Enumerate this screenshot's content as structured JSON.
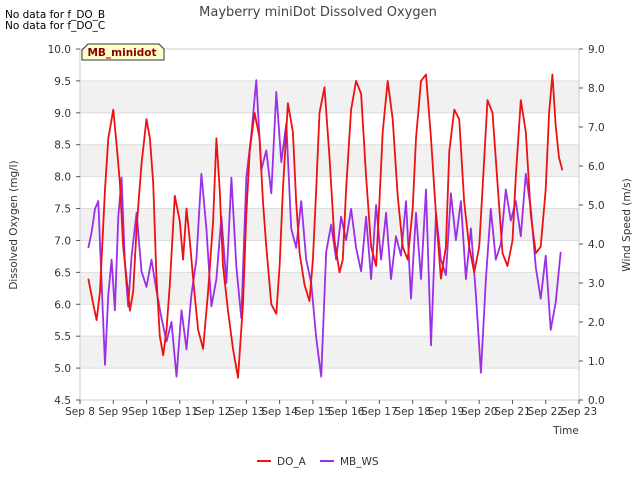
{
  "chart_data": {
    "type": "line",
    "title": "Mayberry miniDot Dissolved Oxygen",
    "notes": [
      "No data for f_DO_B",
      "No data for f_DO_C"
    ],
    "site_badge": "MB_minidot",
    "xlabel": "Time",
    "ylabel_left": "Dissolved Oxygen (mg/l)",
    "ylabel_right": "Wind Speed (m/s)",
    "x_ticks": [
      "Sep 8",
      "Sep 9",
      "Sep 10",
      "Sep 11",
      "Sep 12",
      "Sep 13",
      "Sep 14",
      "Sep 15",
      "Sep 16",
      "Sep 17",
      "Sep 18",
      "Sep 19",
      "Sep 20",
      "Sep 21",
      "Sep 22",
      "Sep 23"
    ],
    "xlim": [
      8,
      23
    ],
    "ylim_left": [
      4.5,
      10.0
    ],
    "ylim_right": [
      0.0,
      9.0
    ],
    "y_ticks_left": [
      "4.5",
      "5.0",
      "5.5",
      "6.0",
      "6.5",
      "7.0",
      "7.5",
      "8.0",
      "8.5",
      "9.0",
      "9.5",
      "10.0"
    ],
    "y_ticks_right": [
      "0.0",
      "1.0",
      "2.0",
      "3.0",
      "4.0",
      "5.0",
      "6.0",
      "7.0",
      "8.0",
      "9.0"
    ],
    "grid_bands": true,
    "legend_position": "bottom-center",
    "series": [
      {
        "name": "DO_A",
        "axis": "left",
        "color": "#ee1111",
        "x": [
          8.25,
          8.4,
          8.5,
          8.6,
          8.75,
          8.85,
          9.0,
          9.1,
          9.2,
          9.3,
          9.4,
          9.5,
          9.6,
          9.7,
          9.85,
          10.0,
          10.1,
          10.2,
          10.3,
          10.4,
          10.5,
          10.6,
          10.7,
          10.85,
          11.0,
          11.1,
          11.2,
          11.3,
          11.4,
          11.55,
          11.7,
          11.85,
          12.0,
          12.1,
          12.2,
          12.3,
          12.45,
          12.6,
          12.75,
          12.9,
          13.0,
          13.1,
          13.25,
          13.4,
          13.5,
          13.6,
          13.75,
          13.9,
          14.0,
          14.1,
          14.25,
          14.4,
          14.5,
          14.6,
          14.75,
          14.9,
          15.0,
          15.1,
          15.2,
          15.35,
          15.5,
          15.65,
          15.8,
          15.9,
          16.0,
          16.15,
          16.3,
          16.45,
          16.6,
          16.75,
          16.9,
          17.0,
          17.1,
          17.25,
          17.4,
          17.55,
          17.7,
          17.85,
          18.0,
          18.1,
          18.25,
          18.4,
          18.55,
          18.7,
          18.85,
          19.0,
          19.1,
          19.25,
          19.4,
          19.55,
          19.7,
          19.85,
          20.0,
          20.1,
          20.25,
          20.4,
          20.55,
          20.7,
          20.85,
          21.0,
          21.1,
          21.25,
          21.4,
          21.55,
          21.7,
          21.85,
          22.0,
          22.1,
          22.2,
          22.3,
          22.4,
          22.5
        ],
        "y": [
          6.4,
          6.0,
          5.75,
          6.2,
          7.8,
          8.6,
          9.05,
          8.5,
          7.9,
          6.9,
          6.4,
          5.9,
          6.2,
          7.2,
          8.2,
          8.9,
          8.6,
          7.9,
          6.4,
          5.5,
          5.2,
          5.6,
          6.3,
          7.7,
          7.3,
          6.7,
          7.5,
          7.0,
          6.4,
          5.6,
          5.3,
          6.2,
          7.3,
          8.6,
          7.8,
          6.6,
          5.9,
          5.3,
          4.85,
          6.0,
          7.4,
          8.4,
          9.0,
          8.6,
          7.6,
          6.9,
          6.0,
          5.85,
          6.6,
          7.8,
          9.15,
          8.7,
          7.6,
          6.8,
          6.3,
          6.05,
          6.7,
          7.8,
          9.0,
          9.4,
          8.3,
          7.0,
          6.5,
          6.7,
          7.8,
          9.05,
          9.5,
          9.3,
          8.0,
          6.9,
          6.6,
          7.6,
          8.7,
          9.5,
          8.9,
          7.7,
          6.9,
          6.7,
          7.5,
          8.6,
          9.5,
          9.6,
          8.6,
          7.4,
          6.4,
          6.9,
          8.4,
          9.05,
          8.9,
          7.6,
          6.9,
          6.5,
          6.9,
          7.8,
          9.2,
          9.0,
          7.9,
          6.8,
          6.6,
          7.0,
          8.0,
          9.2,
          8.7,
          7.4,
          6.8,
          6.9,
          7.8,
          9.0,
          9.6,
          8.8,
          8.3,
          8.1
        ]
      },
      {
        "name": "MB_WS",
        "axis": "right",
        "color": "#9b2fe8",
        "x": [
          8.25,
          8.35,
          8.45,
          8.55,
          8.65,
          8.75,
          8.85,
          8.95,
          9.05,
          9.15,
          9.25,
          9.35,
          9.45,
          9.55,
          9.7,
          9.85,
          10.0,
          10.15,
          10.3,
          10.45,
          10.6,
          10.75,
          10.9,
          11.05,
          11.2,
          11.35,
          11.5,
          11.65,
          11.8,
          11.95,
          12.1,
          12.25,
          12.4,
          12.55,
          12.7,
          12.85,
          13.0,
          13.15,
          13.3,
          13.45,
          13.6,
          13.75,
          13.9,
          14.05,
          14.2,
          14.35,
          14.5,
          14.65,
          14.8,
          14.95,
          15.1,
          15.25,
          15.4,
          15.55,
          15.7,
          15.85,
          16.0,
          16.15,
          16.3,
          16.45,
          16.6,
          16.75,
          16.9,
          17.05,
          17.2,
          17.35,
          17.5,
          17.65,
          17.8,
          17.95,
          18.1,
          18.25,
          18.4,
          18.55,
          18.7,
          18.85,
          19.0,
          19.15,
          19.3,
          19.45,
          19.6,
          19.75,
          19.9,
          20.05,
          20.2,
          20.35,
          20.5,
          20.65,
          20.8,
          20.95,
          21.1,
          21.25,
          21.4,
          21.55,
          21.7,
          21.85,
          22.0,
          22.15,
          22.3,
          22.45
        ],
        "y": [
          3.9,
          4.3,
          4.9,
          5.1,
          3.0,
          0.9,
          2.7,
          3.6,
          2.3,
          4.7,
          5.7,
          3.5,
          2.4,
          3.7,
          4.8,
          3.3,
          2.9,
          3.6,
          2.8,
          2.1,
          1.5,
          2.0,
          0.6,
          2.3,
          1.3,
          2.7,
          3.6,
          5.8,
          4.4,
          2.4,
          3.1,
          4.7,
          3.0,
          5.7,
          3.4,
          2.1,
          5.7,
          6.8,
          8.2,
          5.9,
          6.4,
          5.3,
          7.9,
          6.1,
          7.1,
          4.4,
          3.9,
          5.1,
          3.6,
          3.0,
          1.6,
          0.6,
          3.8,
          4.5,
          3.6,
          4.7,
          4.1,
          4.9,
          3.9,
          3.3,
          4.7,
          3.1,
          5.0,
          3.6,
          4.8,
          3.1,
          4.2,
          3.7,
          5.1,
          2.6,
          4.8,
          3.1,
          5.4,
          1.4,
          4.8,
          3.6,
          3.2,
          5.3,
          4.1,
          5.1,
          3.1,
          4.4,
          2.7,
          0.7,
          3.1,
          4.9,
          3.6,
          4.0,
          5.4,
          4.6,
          5.1,
          4.2,
          5.8,
          4.9,
          3.4,
          2.6,
          3.7,
          1.8,
          2.5,
          3.8
        ]
      }
    ]
  }
}
